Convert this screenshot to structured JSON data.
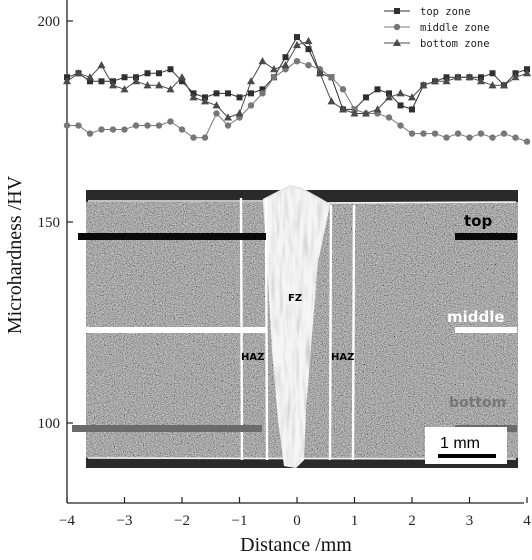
{
  "chart_data": {
    "type": "line",
    "xlabel": "Distance /mm",
    "ylabel": "Microhardness /HV",
    "xlim": [
      -4,
      4
    ],
    "ylim": [
      93,
      205
    ],
    "x_ticks": [
      "−4",
      "−3",
      "−2",
      "−1",
      "0",
      "1",
      "2",
      "3",
      "4"
    ],
    "y_ticks": [
      "100",
      "150",
      "200"
    ],
    "legend_position": "top-right",
    "series": [
      {
        "name": "top zone",
        "marker": "square",
        "x": [
          -4.0,
          -3.8,
          -3.6,
          -3.4,
          -3.2,
          -3.0,
          -2.8,
          -2.6,
          -2.4,
          -2.2,
          -2.0,
          -1.8,
          -1.6,
          -1.4,
          -1.2,
          -1.0,
          -0.8,
          -0.6,
          -0.4,
          -0.2,
          0.0,
          0.2,
          0.4,
          0.6,
          0.8,
          1.0,
          1.2,
          1.4,
          1.6,
          1.8,
          2.0,
          2.2,
          2.4,
          2.6,
          2.8,
          3.0,
          3.2,
          3.4,
          3.6,
          3.8,
          4.0
        ],
        "values": [
          186,
          187,
          185,
          185,
          185,
          186,
          186,
          187,
          187,
          188,
          185,
          182,
          181,
          182,
          182,
          181,
          182,
          183,
          186,
          191,
          196,
          193,
          187,
          186,
          178,
          178,
          181,
          183,
          182,
          179,
          178,
          184,
          185,
          186,
          186,
          186,
          186,
          187,
          184,
          187,
          188
        ]
      },
      {
        "name": "middle zone",
        "marker": "circle",
        "x": [
          -4.0,
          -3.8,
          -3.6,
          -3.4,
          -3.2,
          -3.0,
          -2.8,
          -2.6,
          -2.4,
          -2.2,
          -2.0,
          -1.8,
          -1.6,
          -1.4,
          -1.2,
          -1.0,
          -0.8,
          -0.6,
          -0.4,
          -0.2,
          0.0,
          0.2,
          0.4,
          0.6,
          0.8,
          1.0,
          1.2,
          1.4,
          1.6,
          1.8,
          2.0,
          2.2,
          2.4,
          2.6,
          2.8,
          3.0,
          3.2,
          3.4,
          3.6,
          3.8,
          4.0
        ],
        "values": [
          174,
          174,
          172,
          173,
          173,
          173,
          174,
          174,
          174,
          175,
          173,
          171,
          171,
          177,
          174,
          176,
          179,
          182,
          186,
          188,
          190,
          189,
          188,
          186,
          183,
          178,
          177,
          177,
          176,
          174,
          172,
          172,
          172,
          171,
          172,
          171,
          172,
          171,
          172,
          171,
          170
        ]
      },
      {
        "name": "bottom zone",
        "marker": "triangle",
        "x": [
          -4.0,
          -3.8,
          -3.6,
          -3.4,
          -3.2,
          -3.0,
          -2.8,
          -2.6,
          -2.4,
          -2.2,
          -2.0,
          -1.8,
          -1.6,
          -1.4,
          -1.2,
          -1.0,
          -0.8,
          -0.6,
          -0.4,
          -0.2,
          0.0,
          0.2,
          0.4,
          0.6,
          0.8,
          1.0,
          1.2,
          1.4,
          1.6,
          1.8,
          2.0,
          2.2,
          2.4,
          2.6,
          2.8,
          3.0,
          3.2,
          3.4,
          3.6,
          3.8,
          4.0
        ],
        "values": [
          185,
          187,
          186,
          189,
          184,
          183,
          185,
          184,
          184,
          183,
          186,
          181,
          180,
          179,
          176,
          177,
          185,
          190,
          188,
          189,
          194,
          195,
          187,
          180,
          178,
          177,
          177,
          178,
          181,
          182,
          181,
          184,
          185,
          185,
          186,
          186,
          185,
          184,
          184,
          186,
          187
        ]
      }
    ]
  },
  "micrograph": {
    "labels": {
      "fz": "FZ",
      "haz_left": "HAZ",
      "haz_right": "HAZ",
      "top": "top",
      "middle": "middle",
      "bottom": "bottom",
      "scale": "1 mm"
    }
  }
}
